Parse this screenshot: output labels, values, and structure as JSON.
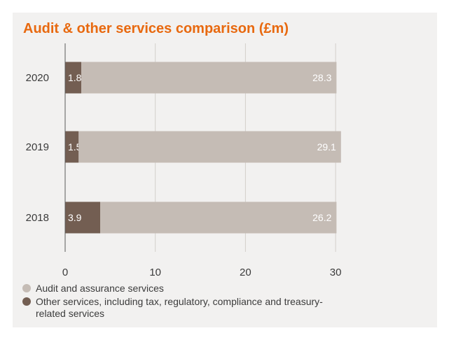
{
  "chart_data": {
    "type": "bar",
    "orientation": "horizontal",
    "stacked": true,
    "title": "Audit & other services comparison (£m)",
    "xlabel": "",
    "ylabel": "",
    "xlim": [
      0,
      30
    ],
    "x_ticks": [
      0,
      10,
      20,
      30
    ],
    "grid": "vertical",
    "legend_position": "bottom",
    "categories": [
      "2020",
      "2019",
      "2018"
    ],
    "series": [
      {
        "name": "Other services, including tax, regulatory, compliance and treasury-related services",
        "color": "#735e52",
        "values": [
          1.8,
          1.5,
          3.9
        ]
      },
      {
        "name": "Audit and assurance services",
        "color": "#c5bcb5",
        "values": [
          28.3,
          29.1,
          26.2
        ]
      }
    ],
    "legend": [
      {
        "label": "Audit and assurance services",
        "color": "#c5bcb5"
      },
      {
        "label": "Other services, including tax, regulatory, compliance and treasury-related services",
        "color": "#735e52"
      }
    ]
  },
  "colors": {
    "title": "#e8690f",
    "background": "#f2f1f0",
    "grid": "#d3cfcb",
    "axis": "#5a5a5a",
    "text": "#3b3b3b"
  }
}
